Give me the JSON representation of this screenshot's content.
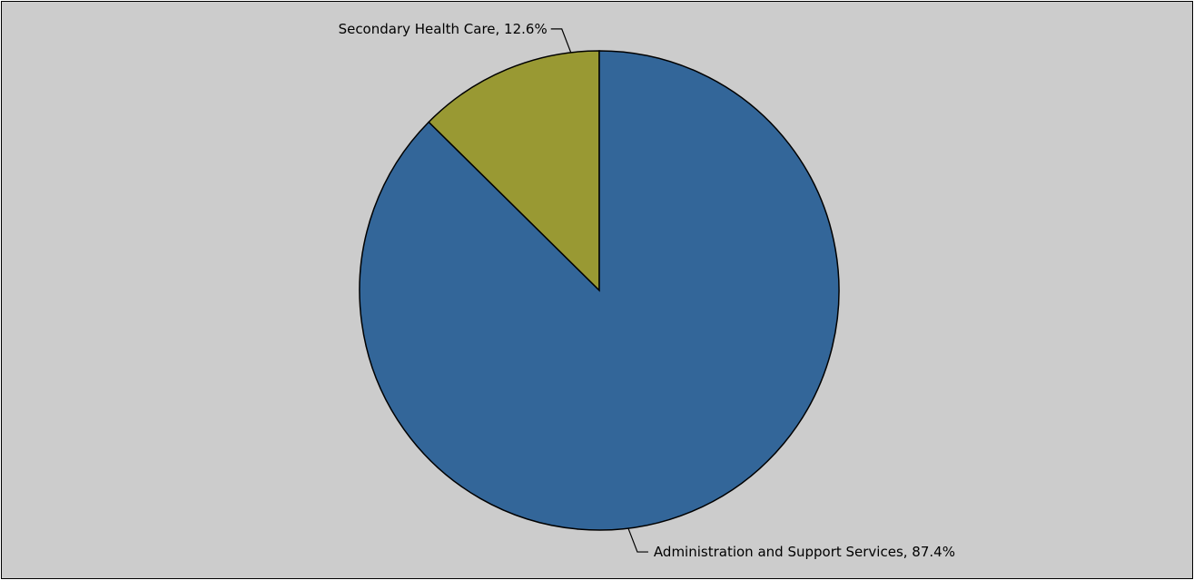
{
  "chart_data": {
    "type": "pie",
    "title": "",
    "start_angle_deg": 0,
    "direction": "counterclockwise",
    "slices": [
      {
        "name": "Secondary Health Care",
        "value": 12.6,
        "label": "Secondary Health Care, 12.6%",
        "color": "#999933"
      },
      {
        "name": "Administration and Support Services",
        "value": 87.4,
        "label": "Administration and Support Services, 87.4%",
        "color": "#336699"
      }
    ],
    "background_color": "#cccccc"
  }
}
